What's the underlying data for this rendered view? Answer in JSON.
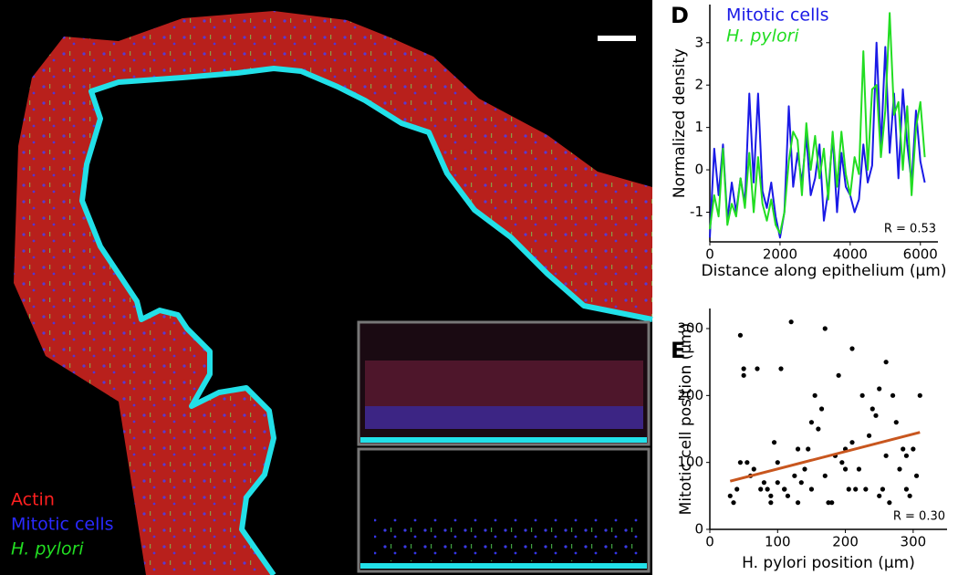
{
  "image_legend": [
    {
      "label": "Actin",
      "color": "#ff2020"
    },
    {
      "label": "Mitotic cells",
      "color": "#2a2aff"
    },
    {
      "label": "H. pylori",
      "color": "#22dd22"
    }
  ],
  "chart_data": [
    {
      "type": "line",
      "panel": "D",
      "xlabel": "Distance along epithelium (µm)",
      "ylabel": "Normalized density",
      "annotation": "R = 0.53",
      "x": [
        0,
        125,
        250,
        375,
        500,
        625,
        750,
        875,
        1000,
        1125,
        1250,
        1375,
        1500,
        1625,
        1750,
        1875,
        2000,
        2125,
        2250,
        2375,
        2500,
        2625,
        2750,
        2875,
        3000,
        3125,
        3250,
        3375,
        3500,
        3625,
        3750,
        3875,
        4000,
        4125,
        4250,
        4375,
        4500,
        4625,
        4750,
        4875,
        5000,
        5125,
        5250,
        5375,
        5500,
        5625,
        5750,
        5875,
        6000,
        6125
      ],
      "series": [
        {
          "name": "Mitotic cells",
          "color": "#1a1ae6",
          "values": [
            -1.6,
            0.5,
            -0.6,
            0.6,
            -1.2,
            -0.3,
            -1.0,
            -0.2,
            -0.8,
            1.8,
            -0.3,
            1.8,
            -0.5,
            -0.9,
            -0.3,
            -1.1,
            -1.6,
            -1.0,
            1.5,
            -0.4,
            0.4,
            -0.3,
            0.8,
            -0.6,
            -0.2,
            0.6,
            -1.2,
            -0.5,
            0.8,
            -1.0,
            0.4,
            -0.4,
            -0.6,
            -1.0,
            -0.7,
            0.6,
            -0.3,
            0.1,
            3.0,
            0.5,
            2.9,
            0.4,
            1.8,
            -0.2,
            1.9,
            0.6,
            -0.3,
            1.4,
            0.2,
            -0.3
          ]
        },
        {
          "name": "H. pylori",
          "color": "#22dd22",
          "values": [
            -1.4,
            -0.6,
            -1.1,
            0.5,
            -1.3,
            -0.8,
            -1.1,
            -0.2,
            -0.9,
            0.4,
            -1.0,
            0.3,
            -0.8,
            -1.2,
            -0.7,
            -1.3,
            -1.5,
            -1.0,
            0.2,
            0.9,
            0.7,
            -0.6,
            1.1,
            0.0,
            0.8,
            -0.2,
            0.5,
            -0.7,
            0.9,
            -0.4,
            0.9,
            -0.1,
            -0.6,
            0.3,
            -0.1,
            2.8,
            0.0,
            1.9,
            2.0,
            0.3,
            1.4,
            3.7,
            1.3,
            1.6,
            0.0,
            1.5,
            -0.6,
            1.0,
            1.6,
            0.3
          ]
        }
      ],
      "xlim": [
        0,
        6500
      ],
      "ylim": [
        -1.7,
        3.9
      ],
      "xticks": [
        0,
        2000,
        4000,
        6000
      ],
      "yticks": [
        -1,
        0,
        1,
        2,
        3
      ]
    },
    {
      "type": "scatter",
      "panel": "E",
      "xlabel": "H. pylori position (µm)",
      "ylabel": "Mitotic cell position (µm)",
      "annotation": "R = 0.30",
      "color": "#000000",
      "x": [
        30,
        45,
        50,
        40,
        60,
        70,
        80,
        90,
        100,
        110,
        120,
        130,
        140,
        150,
        160,
        170,
        180,
        190,
        200,
        210,
        220,
        230,
        240,
        250,
        260,
        270,
        280,
        290,
        300,
        310,
        35,
        55,
        75,
        95,
        115,
        135,
        155,
        175,
        195,
        215,
        235,
        255,
        275,
        295,
        65,
        85,
        105,
        125,
        145,
        165,
        185,
        205,
        225,
        245,
        265,
        285,
        305,
        110,
        150,
        200,
        260,
        50,
        90,
        130,
        170,
        210,
        250,
        290,
        45,
        100
      ],
      "y": [
        50,
        290,
        240,
        60,
        80,
        240,
        70,
        40,
        100,
        60,
        310,
        120,
        90,
        60,
        150,
        80,
        40,
        230,
        120,
        270,
        90,
        60,
        180,
        50,
        250,
        200,
        90,
        60,
        120,
        200,
        40,
        100,
        60,
        130,
        50,
        70,
        200,
        40,
        100,
        60,
        140,
        60,
        160,
        50,
        90,
        60,
        240,
        80,
        120,
        180,
        110,
        60,
        200,
        170,
        40,
        120,
        80,
        60,
        160,
        90,
        110,
        230,
        50,
        40,
        300,
        130,
        210,
        110,
        100,
        70
      ],
      "fit": {
        "color": "#c8561e",
        "x": [
          30,
          310
        ],
        "y": [
          72,
          145
        ]
      },
      "xlim": [
        0,
        350
      ],
      "ylim": [
        0,
        330
      ],
      "xticks": [
        0,
        100,
        200,
        300
      ],
      "yticks": [
        0,
        100,
        200,
        300
      ]
    }
  ]
}
